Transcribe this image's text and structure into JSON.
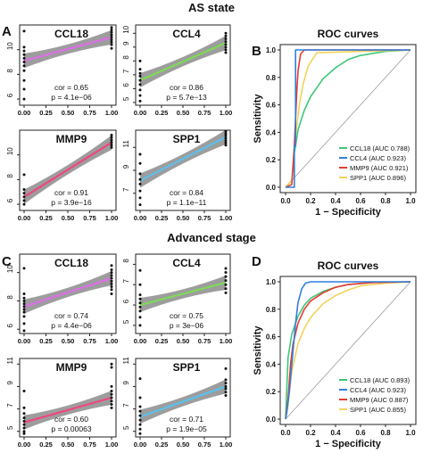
{
  "sections": [
    {
      "title": "AS state"
    },
    {
      "title": "Advanced stage"
    }
  ],
  "panel_letters": [
    "A",
    "B",
    "C",
    "D"
  ],
  "axis_text": {
    "roc_xlabel": "1 − Specificity",
    "roc_ylabel": "Sensitivity"
  },
  "colors": {
    "CCL18": "#dc6fe6",
    "CCL4": "#7ed957",
    "MMP9": "#f0467e",
    "SPP1": "#5bc0eb",
    "band": "#8c8c8c",
    "roc_CCL18": "#3fc779",
    "roc_CCL4": "#2f7fe0",
    "roc_MMP9": "#e63a2e",
    "roc_SPP1": "#f1d35a"
  },
  "chart_data": [
    {
      "type": "scatter",
      "section": "AS state",
      "title": "CCL18",
      "x_ticks": [
        "0.00",
        "0.25",
        "0.50",
        "0.75",
        "1.00"
      ],
      "y_ticks": [
        6,
        8,
        10
      ],
      "ylim": [
        5.5,
        12
      ],
      "fit": {
        "x": [
          0,
          1
        ],
        "y": [
          9.1,
          11.0
        ]
      },
      "points": [
        [
          0,
          10.2
        ],
        [
          0,
          9.9
        ],
        [
          0,
          9.6
        ],
        [
          0,
          9.3
        ],
        [
          0,
          9.0
        ],
        [
          0,
          8.7
        ],
        [
          0,
          8.3
        ],
        [
          0,
          7.5
        ],
        [
          0,
          6.8
        ],
        [
          0,
          6.0
        ],
        [
          0,
          11.5
        ],
        [
          1,
          11.8
        ],
        [
          1,
          11.6
        ],
        [
          1,
          11.4
        ],
        [
          1,
          11.2
        ],
        [
          1,
          11.0
        ],
        [
          1,
          10.8
        ],
        [
          1,
          10.6
        ],
        [
          1,
          10.4
        ],
        [
          1,
          10.1
        ]
      ],
      "annotations": [
        "cor = 0.65",
        "p = 4.1e−06"
      ]
    },
    {
      "type": "scatter",
      "section": "AS state",
      "title": "CCL4",
      "x_ticks": [
        "0.00",
        "0.25",
        "0.50",
        "0.75",
        "1.00"
      ],
      "y_ticks": [
        5,
        6,
        7,
        8,
        9,
        10
      ],
      "ylim": [
        4.8,
        10.6
      ],
      "fit": {
        "x": [
          0,
          1
        ],
        "y": [
          6.6,
          9.3
        ]
      },
      "points": [
        [
          0,
          7.4
        ],
        [
          0,
          7.1
        ],
        [
          0,
          6.9
        ],
        [
          0,
          6.6
        ],
        [
          0,
          6.3
        ],
        [
          0,
          5.9
        ],
        [
          0,
          5.5
        ],
        [
          0,
          5.1
        ],
        [
          0,
          8.0
        ],
        [
          1,
          10.0
        ],
        [
          1,
          9.8
        ],
        [
          1,
          9.6
        ],
        [
          1,
          9.4
        ],
        [
          1,
          9.2
        ],
        [
          1,
          9.0
        ],
        [
          1,
          8.8
        ],
        [
          1,
          8.6
        ]
      ],
      "annotations": [
        "cor = 0.86",
        "p = 5.7e−13"
      ]
    },
    {
      "type": "scatter",
      "section": "AS state",
      "title": "MMP9",
      "x_ticks": [
        "0.00",
        "0.25",
        "0.50",
        "0.75",
        "1.00"
      ],
      "y_ticks": [
        6,
        8,
        10
      ],
      "ylim": [
        5.5,
        12
      ],
      "fit": {
        "x": [
          0,
          1
        ],
        "y": [
          6.6,
          11.0
        ]
      },
      "points": [
        [
          0,
          8.4
        ],
        [
          0,
          7.2
        ],
        [
          0,
          6.9
        ],
        [
          0,
          6.6
        ],
        [
          0,
          6.3
        ],
        [
          0,
          6.0
        ],
        [
          1,
          11.6
        ],
        [
          1,
          11.4
        ],
        [
          1,
          11.2
        ],
        [
          1,
          11.0
        ],
        [
          1,
          10.8
        ],
        [
          1,
          10.6
        ]
      ],
      "annotations": [
        "cor = 0.91",
        "p = 3.9e−16"
      ]
    },
    {
      "type": "scatter",
      "section": "AS state",
      "title": "SPP1",
      "x_ticks": [
        "0.00",
        "0.25",
        "0.50",
        "0.75",
        "1.00"
      ],
      "y_ticks": [
        7,
        9,
        11
      ],
      "ylim": [
        5.5,
        12.5
      ],
      "fit": {
        "x": [
          0,
          1
        ],
        "y": [
          8.1,
          11.9
        ]
      },
      "points": [
        [
          0,
          10.4
        ],
        [
          0,
          9.6
        ],
        [
          0,
          8.7
        ],
        [
          0,
          8.2
        ],
        [
          0,
          7.8
        ],
        [
          0,
          7.2
        ],
        [
          0,
          6.6
        ],
        [
          0,
          6.0
        ],
        [
          1,
          12.4
        ],
        [
          1,
          12.2
        ],
        [
          1,
          12.0
        ],
        [
          1,
          11.8
        ],
        [
          1,
          11.6
        ],
        [
          1,
          11.4
        ],
        [
          1,
          11.2
        ]
      ],
      "annotations": [
        "cor = 0.84",
        "p = 1.1e−11"
      ]
    },
    {
      "type": "line",
      "section": "AS state",
      "title": "ROC curves",
      "x_ticks": [
        "0.0",
        "0.2",
        "0.4",
        "0.6",
        "0.8",
        "1.0"
      ],
      "y_ticks": [
        "0.0",
        "0.2",
        "0.4",
        "0.6",
        "0.8",
        "1.0"
      ],
      "xlim": [
        0,
        1
      ],
      "ylim": [
        0,
        1
      ],
      "legend": "bottom-right",
      "series": [
        {
          "name": "CCL18 (AUC 0.788)",
          "x": [
            0,
            0.05,
            0.07,
            0.08,
            0.1,
            0.15,
            0.2,
            0.3,
            0.4,
            0.5,
            0.6,
            0.8,
            1.0
          ],
          "y": [
            0,
            0.05,
            0.25,
            0.3,
            0.42,
            0.56,
            0.66,
            0.79,
            0.87,
            0.93,
            0.96,
            0.99,
            1.0
          ]
        },
        {
          "name": "CCL4 (AUC 0.923)",
          "x": [
            0,
            0.07,
            0.07,
            0.08,
            0.08,
            0.08,
            1.0
          ],
          "y": [
            0,
            0,
            0.3,
            0.3,
            0.8,
            1.0,
            1.0
          ]
        },
        {
          "name": "MMP9 (AUC 0.921)",
          "x": [
            0,
            0.05,
            0.07,
            0.08,
            0.09,
            0.1,
            0.12,
            0.15,
            1.0
          ],
          "y": [
            0,
            0.02,
            0.3,
            0.5,
            0.7,
            0.85,
            0.97,
            1.0,
            1.0
          ]
        },
        {
          "name": "SPP1 (AUC 0.896)",
          "x": [
            0,
            0.05,
            0.07,
            0.09,
            0.11,
            0.14,
            0.18,
            0.25,
            1.0
          ],
          "y": [
            0,
            0.05,
            0.3,
            0.45,
            0.6,
            0.75,
            0.88,
            0.98,
            1.0
          ]
        }
      ]
    },
    {
      "type": "scatter",
      "section": "Advanced stage",
      "title": "CCL18",
      "x_ticks": [
        "0.00",
        "0.25",
        "0.50",
        "0.75",
        "1.00"
      ],
      "y_ticks": [
        6,
        8,
        10
      ],
      "ylim": [
        5.7,
        11.3
      ],
      "fit": {
        "x": [
          0,
          1
        ],
        "y": [
          7.6,
          9.6
        ]
      },
      "points": [
        [
          0,
          10.3
        ],
        [
          0,
          8.5
        ],
        [
          0,
          8.2
        ],
        [
          0,
          8.0
        ],
        [
          0,
          7.8
        ],
        [
          0,
          7.6
        ],
        [
          0,
          7.4
        ],
        [
          0,
          7.2
        ],
        [
          0,
          6.9
        ],
        [
          0,
          6.4
        ],
        [
          0,
          5.9
        ],
        [
          1,
          10.5
        ],
        [
          1,
          10.2
        ],
        [
          1,
          10.0
        ],
        [
          1,
          9.8
        ],
        [
          1,
          9.6
        ],
        [
          1,
          9.4
        ],
        [
          1,
          9.2
        ],
        [
          1,
          9.0
        ],
        [
          1,
          8.8
        ],
        [
          1,
          8.5
        ]
      ],
      "annotations": [
        "cor = 0.74",
        "p = 4.4e−06"
      ]
    },
    {
      "type": "scatter",
      "section": "Advanced stage",
      "title": "CCL4",
      "x_ticks": [
        "0.00",
        "0.25",
        "0.50",
        "0.75",
        "1.00"
      ],
      "y_ticks": [
        5,
        6,
        7,
        8
      ],
      "ylim": [
        4.6,
        8.5
      ],
      "fit": {
        "x": [
          0,
          1
        ],
        "y": [
          6.0,
          7.1
        ]
      },
      "points": [
        [
          0,
          7.7
        ],
        [
          0,
          7.0
        ],
        [
          0,
          6.5
        ],
        [
          0,
          6.3
        ],
        [
          0,
          6.1
        ],
        [
          0,
          5.9
        ],
        [
          0,
          5.7
        ],
        [
          0,
          5.4
        ],
        [
          0,
          5.0
        ],
        [
          1,
          7.8
        ],
        [
          1,
          7.6
        ],
        [
          1,
          7.4
        ],
        [
          1,
          7.2
        ],
        [
          1,
          7.0
        ],
        [
          1,
          6.8
        ],
        [
          1,
          6.6
        ]
      ],
      "annotations": [
        "cor = 0.75",
        "p = 3e−06"
      ]
    },
    {
      "type": "scatter",
      "section": "Advanced stage",
      "title": "MMP9",
      "x_ticks": [
        "0.00",
        "0.25",
        "0.50",
        "0.75",
        "1.00"
      ],
      "y_ticks": [
        5,
        7,
        9,
        11
      ],
      "ylim": [
        4.5,
        11.5
      ],
      "fit": {
        "x": [
          0,
          1
        ],
        "y": [
          5.8,
          8.0
        ]
      },
      "points": [
        [
          0,
          8.6
        ],
        [
          0,
          7.1
        ],
        [
          0,
          6.6
        ],
        [
          0,
          6.2
        ],
        [
          0,
          5.9
        ],
        [
          0,
          5.6
        ],
        [
          0,
          5.3
        ],
        [
          0,
          5.0
        ],
        [
          0,
          4.8
        ],
        [
          1,
          11.0
        ],
        [
          1,
          10.7
        ],
        [
          1,
          9.0
        ],
        [
          1,
          8.6
        ],
        [
          1,
          8.3
        ],
        [
          1,
          8.0
        ],
        [
          1,
          7.7
        ],
        [
          1,
          7.4
        ],
        [
          1,
          7.1
        ]
      ],
      "annotations": [
        "cor = 0.60",
        "p = 0.00063"
      ]
    },
    {
      "type": "scatter",
      "section": "Advanced stage",
      "title": "SPP1",
      "x_ticks": [
        "0.00",
        "0.25",
        "0.50",
        "0.75",
        "1.00"
      ],
      "y_ticks": [
        5,
        7,
        9,
        11
      ],
      "ylim": [
        4.5,
        11.5
      ],
      "fit": {
        "x": [
          0,
          1
        ],
        "y": [
          6.3,
          9.0
        ]
      },
      "points": [
        [
          0,
          9.7
        ],
        [
          0,
          8.0
        ],
        [
          0,
          7.2
        ],
        [
          0,
          6.8
        ],
        [
          0,
          6.4
        ],
        [
          0,
          6.0
        ],
        [
          0,
          5.6
        ],
        [
          0,
          5.2
        ],
        [
          0,
          4.8
        ],
        [
          1,
          10.6
        ],
        [
          1,
          9.6
        ],
        [
          1,
          9.3
        ],
        [
          1,
          9.0
        ],
        [
          1,
          8.8
        ],
        [
          1,
          8.5
        ],
        [
          1,
          8.2
        ]
      ],
      "annotations": [
        "cor = 0.71",
        "p = 1.9e−05"
      ]
    },
    {
      "type": "line",
      "section": "Advanced stage",
      "title": "ROC curves",
      "x_ticks": [
        "0.0",
        "0.2",
        "0.4",
        "0.6",
        "0.8",
        "1.0"
      ],
      "y_ticks": [
        "0.0",
        "0.2",
        "0.4",
        "0.6",
        "0.8",
        "1.0"
      ],
      "xlim": [
        0,
        1
      ],
      "ylim": [
        0,
        1
      ],
      "legend": "bottom-right",
      "series": [
        {
          "name": "CCL18 (AUC 0.893)",
          "x": [
            0,
            0.02,
            0.05,
            0.1,
            0.15,
            0.2,
            0.3,
            0.4,
            0.5,
            0.7,
            1.0
          ],
          "y": [
            0,
            0.45,
            0.62,
            0.75,
            0.83,
            0.88,
            0.93,
            0.96,
            0.98,
            0.995,
            1.0
          ]
        },
        {
          "name": "CCL4 (AUC 0.923)",
          "x": [
            0,
            0.01,
            0.03,
            0.05,
            0.08,
            0.1,
            0.13,
            0.16,
            0.2,
            0.3,
            1.0
          ],
          "y": [
            0,
            0.05,
            0.2,
            0.4,
            0.7,
            0.85,
            0.95,
            0.99,
            1.0,
            1.0,
            1.0
          ]
        },
        {
          "name": "MMP9 (AUC 0.887)",
          "x": [
            0,
            0.02,
            0.04,
            0.06,
            0.1,
            0.15,
            0.2,
            0.3,
            0.4,
            0.5,
            0.7,
            1.0
          ],
          "y": [
            0,
            0.15,
            0.4,
            0.55,
            0.7,
            0.8,
            0.86,
            0.92,
            0.96,
            0.98,
            0.995,
            1.0
          ]
        },
        {
          "name": "SPP1 (AUC 0.855)",
          "x": [
            0,
            0.02,
            0.05,
            0.1,
            0.15,
            0.2,
            0.3,
            0.4,
            0.5,
            0.6,
            0.8,
            1.0
          ],
          "y": [
            0,
            0.1,
            0.35,
            0.55,
            0.66,
            0.74,
            0.84,
            0.9,
            0.94,
            0.97,
            0.99,
            1.0
          ]
        }
      ]
    }
  ]
}
